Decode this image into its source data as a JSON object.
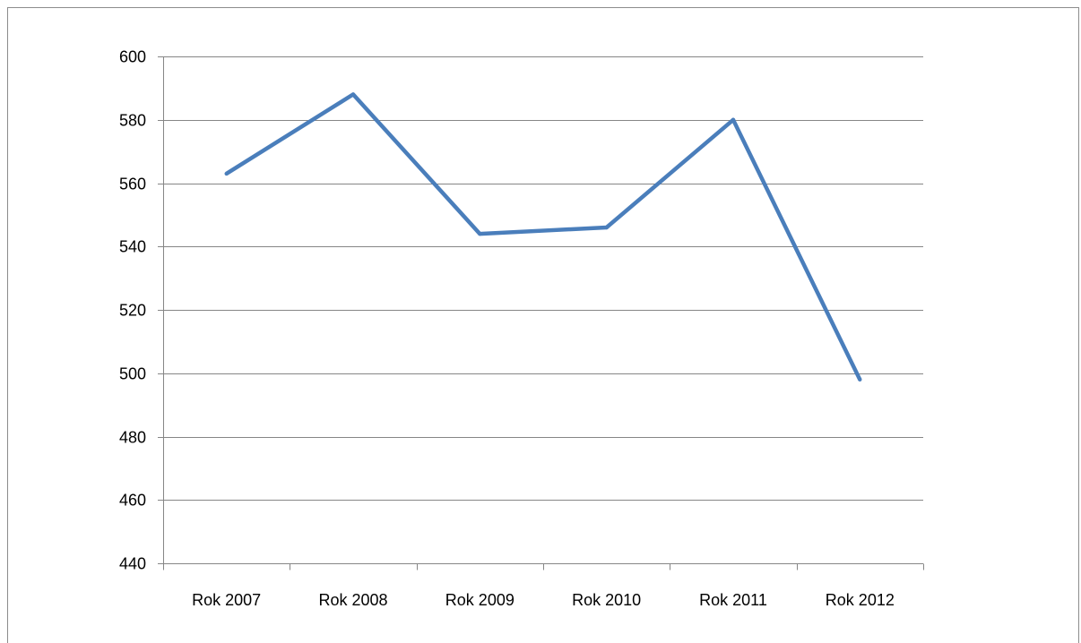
{
  "chart_data": {
    "type": "line",
    "categories": [
      "Rok 2007",
      "Rok 2008",
      "Rok 2009",
      "Rok 2010",
      "Rok 2011",
      "Rok 2012"
    ],
    "series": [
      {
        "values": [
          563,
          588,
          544,
          546,
          580,
          498
        ]
      }
    ],
    "ylim": [
      440,
      600
    ],
    "yticks": [
      "440",
      "460",
      "480",
      "500",
      "520",
      "540",
      "560",
      "580",
      "600"
    ],
    "grid": true,
    "legend": "none",
    "colors": {
      "line": "#4a7ebb",
      "grid": "#868686",
      "axis": "#868686"
    }
  }
}
